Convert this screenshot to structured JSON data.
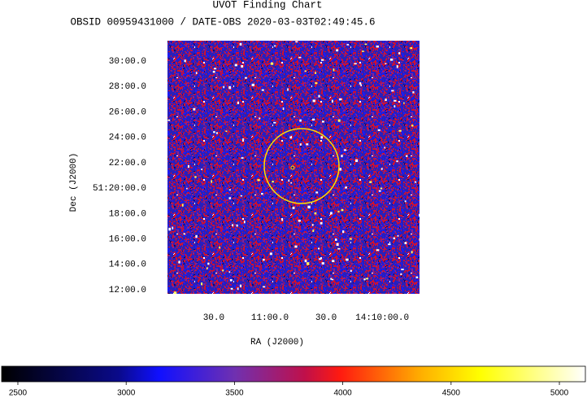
{
  "chart_data": {
    "type": "image",
    "title": "UVOT Finding Chart",
    "subtitle": "OBSID 00959431000 / DATE-OBS 2020-03-03T02:49:45.6",
    "xlabel": "RA (J2000)",
    "ylabel": "Dec (J2000)",
    "xlim": [
      212.978,
      212.417
    ],
    "xticks": [
      {
        "value": 212.875,
        "label": "30.0"
      },
      {
        "value": 212.75,
        "label": "11:00.0"
      },
      {
        "value": 212.625,
        "label": "30.0"
      },
      {
        "value": 212.5,
        "label": "14:10:00.0"
      }
    ],
    "ylim": [
      51.1947,
      51.5267
    ],
    "yticks": [
      {
        "value": 51.2,
        "label": "12:00.0"
      },
      {
        "value": 51.23333,
        "label": "14:00.0"
      },
      {
        "value": 51.26667,
        "label": "16:00.0"
      },
      {
        "value": 51.3,
        "label": "18:00.0"
      },
      {
        "value": 51.33333,
        "label": "51:20:00.0"
      },
      {
        "value": 51.36667,
        "label": "22:00.0"
      },
      {
        "value": 51.4,
        "label": "24:00.0"
      },
      {
        "value": 51.43333,
        "label": "26:00.0"
      },
      {
        "value": 51.46667,
        "label": "28:00.0"
      },
      {
        "value": 51.5,
        "label": "30:00.0"
      }
    ],
    "clim": [
      2425,
      5120
    ],
    "cticks": [
      2500,
      3000,
      3500,
      4000,
      4500,
      5000
    ]
  }
}
